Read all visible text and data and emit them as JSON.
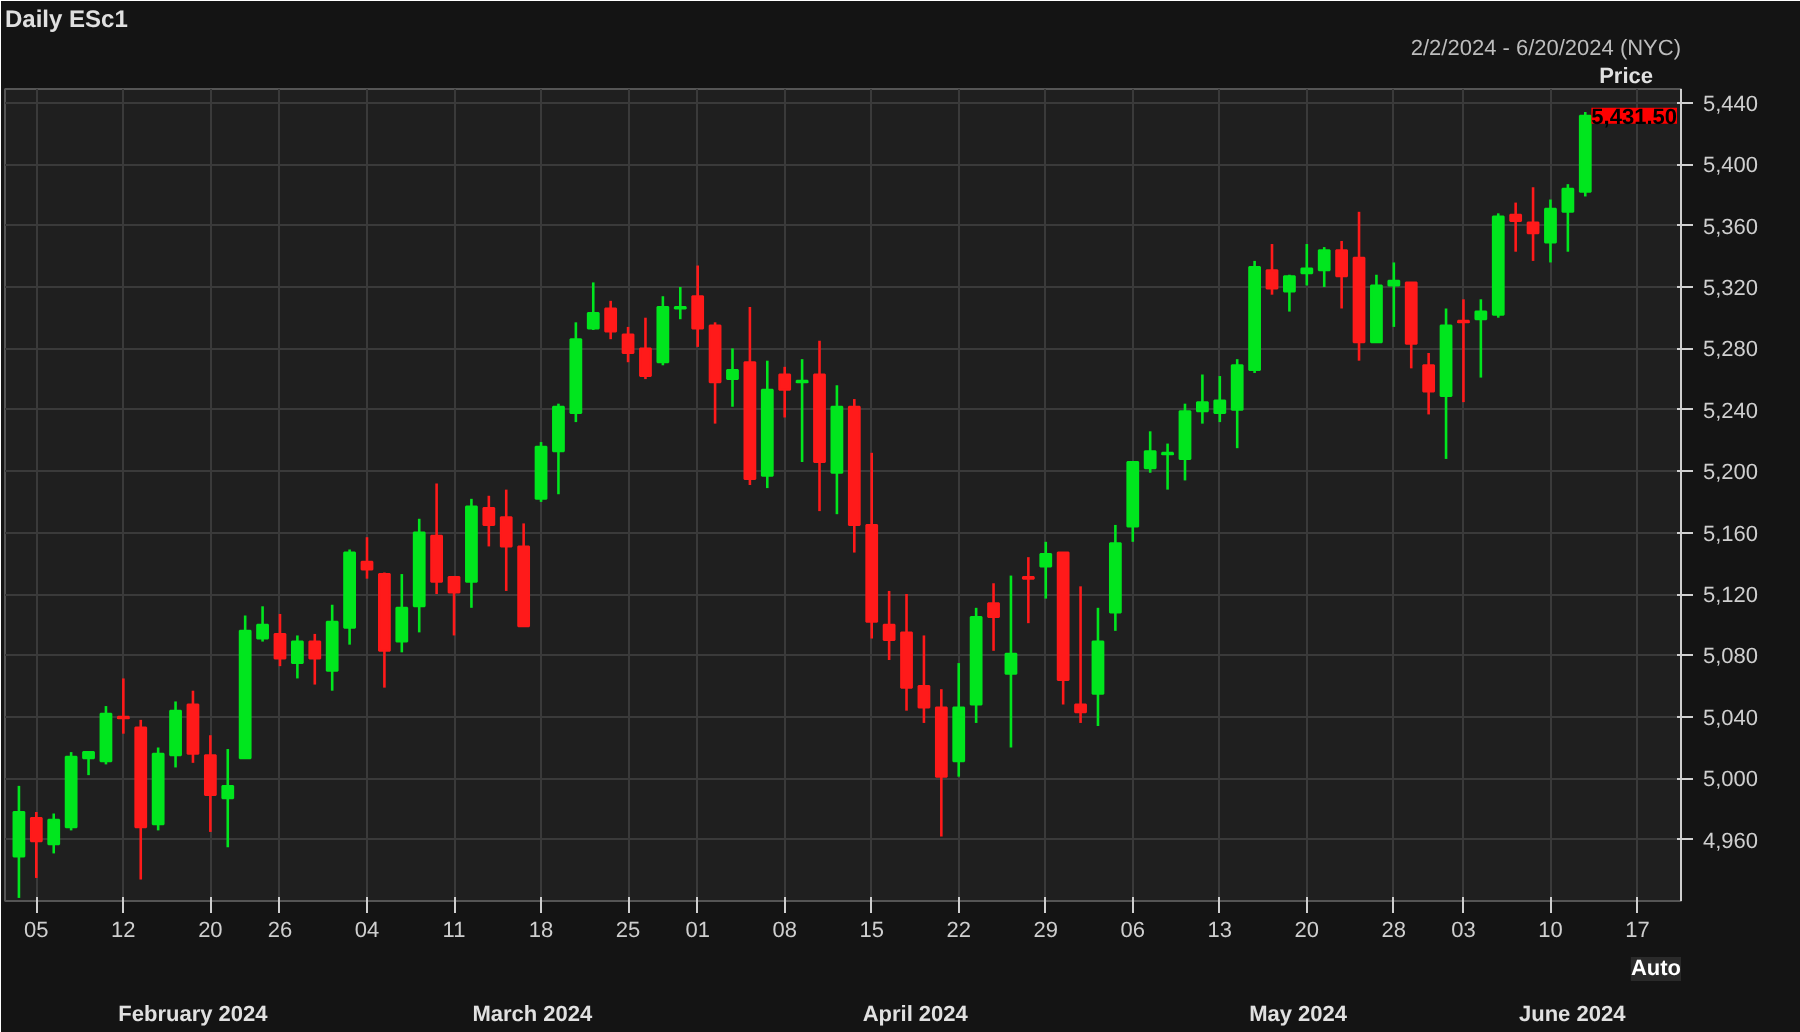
{
  "chart_data": {
    "type": "candlestick",
    "title": "Daily ESc1",
    "subtitle": "2/2/2024 - 6/20/2024 (NYC)",
    "ylabel": "Price",
    "categories": [
      null,
      "05",
      null,
      null,
      null,
      null,
      "12",
      null,
      null,
      null,
      null,
      "20",
      null,
      null,
      null,
      "26",
      null,
      null,
      null,
      null,
      "04",
      null,
      null,
      null,
      null,
      "11",
      null,
      null,
      null,
      null,
      "18",
      null,
      null,
      null,
      null,
      "25",
      null,
      null,
      null,
      "01",
      null,
      null,
      null,
      null,
      "08",
      null,
      null,
      null,
      null,
      "15",
      null,
      null,
      null,
      null,
      "22",
      null,
      null,
      null,
      null,
      "29",
      null,
      null,
      null,
      null,
      "06",
      null,
      null,
      null,
      null,
      "13",
      null,
      null,
      null,
      null,
      "20",
      null,
      null,
      null,
      null,
      "28",
      null,
      null,
      null,
      "03",
      null,
      null,
      null,
      null,
      "10",
      null,
      null,
      null,
      null,
      "17",
      null,
      null
    ],
    "ohlc": [
      [
        4949,
        4995,
        4922,
        4978
      ],
      [
        4974,
        4978,
        4935,
        4959
      ],
      [
        4957,
        4977,
        4951,
        4973
      ],
      [
        4968,
        5017,
        4966,
        5014
      ],
      [
        5013,
        5017,
        5002,
        5017
      ],
      [
        5011,
        5047,
        5009,
        5042
      ],
      [
        5040,
        5065,
        5029,
        5039
      ],
      [
        5033,
        5038,
        4934,
        4968
      ],
      [
        4970,
        5020,
        4966,
        5016
      ],
      [
        5015,
        5050,
        5007,
        5044
      ],
      [
        5048,
        5057,
        5010,
        5016
      ],
      [
        5015,
        5028,
        4965,
        4989
      ],
      [
        4987,
        5019,
        4955,
        4995
      ],
      [
        5013,
        5106,
        5013,
        5096
      ],
      [
        5091,
        5112,
        5089,
        5100
      ],
      [
        5094,
        5107,
        5073,
        5078
      ],
      [
        5075,
        5093,
        5065,
        5089
      ],
      [
        5089,
        5094,
        5061,
        5078
      ],
      [
        5070,
        5113,
        5057,
        5102
      ],
      [
        5098,
        5149,
        5087,
        5147
      ],
      [
        5141,
        5157,
        5130,
        5136
      ],
      [
        5133,
        5134,
        5059,
        5083
      ],
      [
        5089,
        5133,
        5082,
        5111
      ],
      [
        5112,
        5169,
        5095,
        5160
      ],
      [
        5158,
        5192,
        5120,
        5128
      ],
      [
        5131,
        5131,
        5093,
        5121
      ],
      [
        5128,
        5182,
        5111,
        5177
      ],
      [
        5176,
        5184,
        5151,
        5165
      ],
      [
        5170,
        5188,
        5122,
        5151
      ],
      [
        5151,
        5166,
        5099,
        5099
      ],
      [
        5182,
        5219,
        5180,
        5216
      ],
      [
        5213,
        5244,
        5185,
        5242
      ],
      [
        5238,
        5297,
        5232,
        5286
      ],
      [
        5293,
        5323,
        5292,
        5303
      ],
      [
        5306,
        5311,
        5286,
        5291
      ],
      [
        5289,
        5294,
        5271,
        5277
      ],
      [
        5280,
        5300,
        5260,
        5262
      ],
      [
        5271,
        5314,
        5269,
        5307
      ],
      [
        5306,
        5320,
        5299,
        5307
      ],
      [
        5314,
        5334,
        5281,
        5293
      ],
      [
        5295,
        5297,
        5231,
        5258
      ],
      [
        5260,
        5280,
        5242,
        5266
      ],
      [
        5271,
        5307,
        5191,
        5195
      ],
      [
        5197,
        5272,
        5189,
        5253
      ],
      [
        5263,
        5268,
        5235,
        5253
      ],
      [
        5258,
        5273,
        5206,
        5259
      ],
      [
        5263,
        5285,
        5174,
        5206
      ],
      [
        5199,
        5256,
        5172,
        5242
      ],
      [
        5242,
        5247,
        5147,
        5165
      ],
      [
        5165,
        5212,
        5091,
        5102
      ],
      [
        5100,
        5122,
        5077,
        5090
      ],
      [
        5095,
        5120,
        5044,
        5059
      ],
      [
        5060,
        5093,
        5036,
        5046
      ],
      [
        5046,
        5058,
        4962,
        5001
      ],
      [
        5011,
        5075,
        5001,
        5046
      ],
      [
        5048,
        5111,
        5036,
        5105
      ],
      [
        5114,
        5127,
        5083,
        5105
      ],
      [
        5068,
        5132,
        5020,
        5081
      ],
      [
        5131,
        5144,
        5101,
        5130
      ],
      [
        5138,
        5154,
        5117,
        5146
      ],
      [
        5147,
        5147,
        5048,
        5064
      ],
      [
        5048,
        5125,
        5036,
        5043
      ],
      [
        5055,
        5111,
        5034,
        5089
      ],
      [
        5108,
        5165,
        5096,
        5153
      ],
      [
        5164,
        5206,
        5154,
        5206
      ],
      [
        5202,
        5226,
        5199,
        5213
      ],
      [
        5211,
        5218,
        5188,
        5212
      ],
      [
        5208,
        5244,
        5194,
        5239
      ],
      [
        5239,
        5263,
        5231,
        5245
      ],
      [
        5238,
        5262,
        5232,
        5246
      ],
      [
        5240,
        5273,
        5215,
        5269
      ],
      [
        5266,
        5337,
        5264,
        5333
      ],
      [
        5331,
        5348,
        5315,
        5319
      ],
      [
        5317,
        5328,
        5304,
        5327
      ],
      [
        5329,
        5348,
        5321,
        5332
      ],
      [
        5331,
        5346,
        5320,
        5344
      ],
      [
        5344,
        5350,
        5306,
        5327
      ],
      [
        5339,
        5369,
        5272,
        5284
      ],
      [
        5284,
        5328,
        5284,
        5321
      ],
      [
        5321,
        5336,
        5294,
        5324
      ],
      [
        5323,
        5323,
        5267,
        5283
      ],
      [
        5269,
        5277,
        5237,
        5252
      ],
      [
        5249,
        5306,
        5208,
        5295
      ],
      [
        5298,
        5312,
        5245,
        5297
      ],
      [
        5299,
        5312,
        5261,
        5304
      ],
      [
        5302,
        5368,
        5300,
        5366
      ],
      [
        5367,
        5375,
        5343,
        5363
      ],
      [
        5362,
        5385,
        5337,
        5355
      ],
      [
        5349,
        5377,
        5336,
        5371
      ],
      [
        5369,
        5387,
        5343,
        5384
      ],
      [
        5382,
        5434,
        5379,
        5431.5
      ],
      null,
      null,
      null,
      null,
      null
    ],
    "ylim": [
      4920,
      5449
    ],
    "yticks": [
      {
        "value": 4960,
        "label": "4,960"
      },
      {
        "value": 5000,
        "label": "5,000"
      },
      {
        "value": 5040,
        "label": "5,040"
      },
      {
        "value": 5080,
        "label": "5,080"
      },
      {
        "value": 5120,
        "label": "5,120"
      },
      {
        "value": 5160,
        "label": "5,160"
      },
      {
        "value": 5200,
        "label": "5,200"
      },
      {
        "value": 5240,
        "label": "5,240"
      },
      {
        "value": 5280,
        "label": "5,280"
      },
      {
        "value": 5320,
        "label": "5,320"
      },
      {
        "value": 5360,
        "label": "5,360"
      },
      {
        "value": 5400,
        "label": "5,400"
      },
      {
        "value": 5440,
        "label": "5,440"
      }
    ],
    "grid": true,
    "annotations": [
      "February 2024",
      "March 2024",
      "April 2024",
      "May 2024",
      "June 2024",
      "5,431.50",
      "Auto"
    ]
  }
}
